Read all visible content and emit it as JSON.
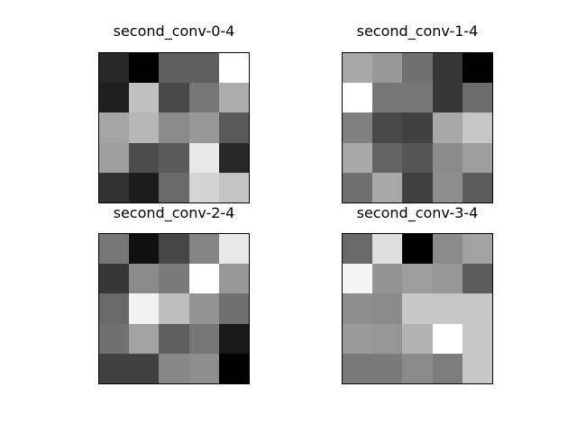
{
  "chart_data": [
    {
      "type": "heatmap",
      "title": "second_conv-0-4",
      "colormap": "gray",
      "grid": false,
      "axes_visible": false,
      "values": [
        [
          40,
          0,
          95,
          95,
          255
        ],
        [
          30,
          192,
          72,
          118,
          172
        ],
        [
          165,
          182,
          138,
          152,
          90
        ],
        [
          158,
          75,
          90,
          232,
          40
        ],
        [
          50,
          28,
          105,
          212,
          195
        ]
      ]
    },
    {
      "type": "heatmap",
      "title": "second_conv-1-4",
      "colormap": "gray",
      "grid": false,
      "axes_visible": false,
      "values": [
        [
          168,
          152,
          112,
          55,
          0
        ],
        [
          255,
          118,
          118,
          55,
          108
        ],
        [
          128,
          72,
          65,
          168,
          198
        ],
        [
          168,
          100,
          85,
          138,
          158
        ],
        [
          112,
          168,
          65,
          142,
          92
        ]
      ]
    },
    {
      "type": "heatmap",
      "title": "second_conv-2-4",
      "colormap": "gray",
      "grid": false,
      "axes_visible": false,
      "values": [
        [
          118,
          15,
          70,
          132,
          232
        ],
        [
          55,
          138,
          122,
          255,
          152
        ],
        [
          105,
          242,
          190,
          148,
          112
        ],
        [
          112,
          162,
          95,
          118,
          25
        ],
        [
          65,
          65,
          135,
          142,
          0
        ]
      ]
    },
    {
      "type": "heatmap",
      "title": "second_conv-3-4",
      "colormap": "gray",
      "grid": false,
      "axes_visible": false,
      "values": [
        [
          105,
          222,
          0,
          138,
          162
        ],
        [
          245,
          148,
          158,
          152,
          92
        ],
        [
          142,
          138,
          200,
          198,
          198
        ],
        [
          155,
          150,
          178,
          255,
          200
        ],
        [
          122,
          122,
          138,
          125,
          200
        ]
      ]
    }
  ]
}
